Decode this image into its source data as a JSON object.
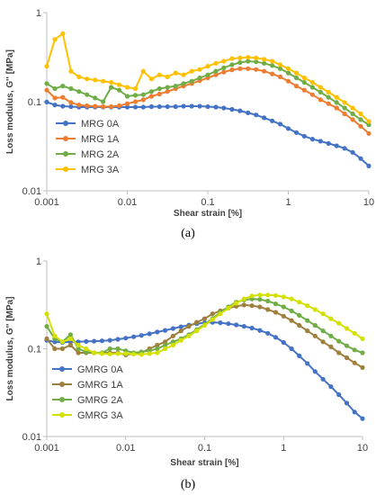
{
  "chart_data": [
    {
      "type": "line",
      "caption": "(a)",
      "xlabel": "Shear strain [%]",
      "ylabel": "Loss modulus, G'' [MPa]",
      "xscale": "log",
      "yscale": "log",
      "xlim": [
        0.001,
        10
      ],
      "ylim": [
        0.01,
        1
      ],
      "xticks": [
        "0.001",
        "0.01",
        "0.1",
        "1",
        "10"
      ],
      "yticks": [
        "0.01",
        "0.1",
        "1"
      ],
      "grid": false,
      "legend": "left-middle",
      "x": [
        0.001,
        0.00126,
        0.00158,
        0.002,
        0.00251,
        0.00316,
        0.00398,
        0.00501,
        0.00631,
        0.00794,
        0.01,
        0.0126,
        0.0158,
        0.02,
        0.0251,
        0.0316,
        0.0398,
        0.0501,
        0.0631,
        0.0794,
        0.1,
        0.126,
        0.158,
        0.2,
        0.251,
        0.316,
        0.398,
        0.501,
        0.631,
        0.794,
        1,
        1.26,
        1.58,
        2,
        2.51,
        3.16,
        3.98,
        5.01,
        6.31,
        7.94,
        10
      ],
      "series": [
        {
          "name": "MRG 0A",
          "color": "#4472C4",
          "values": [
            0.099,
            0.092,
            0.089,
            0.088,
            0.087,
            0.087,
            0.087,
            0.087,
            0.087,
            0.087,
            0.087,
            0.087,
            0.087,
            0.088,
            0.088,
            0.088,
            0.088,
            0.089,
            0.089,
            0.089,
            0.088,
            0.087,
            0.085,
            0.082,
            0.079,
            0.075,
            0.071,
            0.066,
            0.061,
            0.056,
            0.05,
            0.045,
            0.041,
            0.038,
            0.036,
            0.034,
            0.032,
            0.03,
            0.027,
            0.023,
            0.019
          ]
        },
        {
          "name": "MRG 1A",
          "color": "#ED7D31",
          "values": [
            0.135,
            0.11,
            0.112,
            0.098,
            0.092,
            0.09,
            0.089,
            0.088,
            0.088,
            0.09,
            0.095,
            0.1,
            0.105,
            0.115,
            0.122,
            0.13,
            0.14,
            0.15,
            0.16,
            0.172,
            0.185,
            0.2,
            0.215,
            0.228,
            0.235,
            0.235,
            0.23,
            0.22,
            0.205,
            0.19,
            0.17,
            0.15,
            0.135,
            0.12,
            0.105,
            0.095,
            0.085,
            0.073,
            0.063,
            0.053,
            0.044
          ]
        },
        {
          "name": "MRG 2A",
          "color": "#70AD47",
          "values": [
            0.16,
            0.14,
            0.15,
            0.14,
            0.13,
            0.12,
            0.11,
            0.1,
            0.145,
            0.135,
            0.115,
            0.118,
            0.12,
            0.13,
            0.14,
            0.145,
            0.15,
            0.16,
            0.17,
            0.185,
            0.2,
            0.22,
            0.24,
            0.26,
            0.275,
            0.285,
            0.28,
            0.27,
            0.255,
            0.235,
            0.21,
            0.185,
            0.165,
            0.145,
            0.128,
            0.112,
            0.098,
            0.085,
            0.073,
            0.063,
            0.055
          ]
        },
        {
          "name": "MRG 3A",
          "color": "#FFC000",
          "values": [
            0.25,
            0.5,
            0.58,
            0.22,
            0.19,
            0.18,
            0.175,
            0.17,
            0.165,
            0.155,
            0.145,
            0.14,
            0.22,
            0.18,
            0.2,
            0.19,
            0.21,
            0.2,
            0.22,
            0.23,
            0.25,
            0.27,
            0.285,
            0.305,
            0.31,
            0.315,
            0.31,
            0.3,
            0.285,
            0.26,
            0.235,
            0.21,
            0.185,
            0.165,
            0.145,
            0.128,
            0.112,
            0.098,
            0.085,
            0.073,
            0.06
          ]
        }
      ]
    },
    {
      "type": "line",
      "caption": "(b)",
      "xlabel": "Shear strain [%]",
      "ylabel": "Loss modulus, G'' [MPa]",
      "xscale": "log",
      "yscale": "log",
      "xlim": [
        0.001,
        10
      ],
      "ylim": [
        0.01,
        1
      ],
      "xticks": [
        "0.001",
        "0.01",
        "0.1",
        "1",
        "10"
      ],
      "yticks": [
        "0.01",
        "0.1",
        "1"
      ],
      "grid": false,
      "legend": "left-bottom",
      "x": [
        0.001,
        0.00126,
        0.00158,
        0.002,
        0.00251,
        0.00316,
        0.00398,
        0.00501,
        0.00631,
        0.00794,
        0.01,
        0.0126,
        0.0158,
        0.02,
        0.0251,
        0.0316,
        0.0398,
        0.0501,
        0.0631,
        0.0794,
        0.1,
        0.126,
        0.158,
        0.2,
        0.251,
        0.316,
        0.398,
        0.501,
        0.631,
        0.794,
        1,
        1.26,
        1.58,
        2,
        2.51,
        3.16,
        3.98,
        5.01,
        6.31,
        7.94,
        10
      ],
      "series": [
        {
          "name": "GMRG 0A",
          "color": "#4472C4",
          "values": [
            0.125,
            0.12,
            0.118,
            0.12,
            0.12,
            0.121,
            0.122,
            0.123,
            0.125,
            0.128,
            0.132,
            0.137,
            0.142,
            0.148,
            0.155,
            0.162,
            0.17,
            0.178,
            0.186,
            0.193,
            0.198,
            0.2,
            0.198,
            0.193,
            0.187,
            0.18,
            0.172,
            0.162,
            0.15,
            0.135,
            0.118,
            0.1,
            0.083,
            0.068,
            0.055,
            0.045,
            0.037,
            0.03,
            0.024,
            0.019,
            0.016
          ]
        },
        {
          "name": "GMRG 1A",
          "color": "#9E7F3E",
          "values": [
            0.13,
            0.1,
            0.1,
            0.11,
            0.09,
            0.09,
            0.09,
            0.09,
            0.09,
            0.09,
            0.085,
            0.088,
            0.09,
            0.1,
            0.11,
            0.12,
            0.14,
            0.16,
            0.18,
            0.2,
            0.22,
            0.25,
            0.27,
            0.29,
            0.305,
            0.315,
            0.31,
            0.3,
            0.28,
            0.26,
            0.235,
            0.21,
            0.185,
            0.16,
            0.14,
            0.12,
            0.105,
            0.09,
            0.079,
            0.069,
            0.061
          ]
        },
        {
          "name": "GMRG 2A",
          "color": "#70AD47",
          "values": [
            0.18,
            0.13,
            0.12,
            0.145,
            0.1,
            0.092,
            0.09,
            0.09,
            0.1,
            0.1,
            0.095,
            0.09,
            0.092,
            0.095,
            0.1,
            0.11,
            0.12,
            0.13,
            0.145,
            0.165,
            0.19,
            0.22,
            0.26,
            0.3,
            0.34,
            0.36,
            0.37,
            0.365,
            0.35,
            0.325,
            0.3,
            0.27,
            0.24,
            0.21,
            0.185,
            0.16,
            0.14,
            0.122,
            0.108,
            0.097,
            0.09
          ]
        },
        {
          "name": "GMRG 3A",
          "color": "#D4E000",
          "values": [
            0.25,
            0.14,
            0.12,
            0.13,
            0.11,
            0.1,
            0.09,
            0.088,
            0.087,
            0.088,
            0.088,
            0.087,
            0.086,
            0.088,
            0.09,
            0.1,
            0.11,
            0.125,
            0.14,
            0.16,
            0.185,
            0.215,
            0.25,
            0.29,
            0.33,
            0.37,
            0.4,
            0.41,
            0.41,
            0.405,
            0.39,
            0.37,
            0.34,
            0.31,
            0.28,
            0.25,
            0.22,
            0.195,
            0.17,
            0.15,
            0.13
          ]
        }
      ]
    }
  ]
}
